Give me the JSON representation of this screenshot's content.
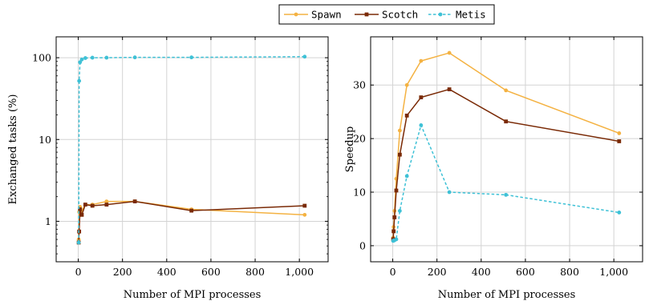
{
  "legend": {
    "entries": [
      {
        "name": "Spawn",
        "color": "#f4b242",
        "marker": "circle",
        "dash": "solid"
      },
      {
        "name": "Scotch",
        "color": "#7a2a06",
        "marker": "square",
        "dash": "solid"
      },
      {
        "name": "Metis",
        "color": "#3ec1d6",
        "marker": "circle",
        "dash": "dashed"
      }
    ],
    "placement": "top-center"
  },
  "chart_data": [
    {
      "type": "line",
      "xlabel": "Number of MPI processes",
      "ylabel": "Exchanged tasks (%)",
      "yscale": "log",
      "xlim": [
        -100,
        1130
      ],
      "ylim": [
        0.32,
        180
      ],
      "xticks": [
        0,
        200,
        400,
        600,
        800,
        1000
      ],
      "xtick_labels": [
        "0",
        "200",
        "400",
        "600",
        "800",
        "1,000"
      ],
      "yticks": [
        1,
        10,
        100
      ],
      "ytick_labels": [
        "1",
        "10",
        "100"
      ],
      "grid": true,
      "series": [
        {
          "name": "Spawn",
          "color": "#f4b242",
          "x": [
            2,
            4,
            8,
            16,
            32,
            64,
            128,
            256,
            512,
            1024
          ],
          "y": [
            0.6,
            1.3,
            1.5,
            1.35,
            1.6,
            1.6,
            1.75,
            1.75,
            1.4,
            1.2
          ]
        },
        {
          "name": "Scotch",
          "color": "#7a2a06",
          "x": [
            2,
            4,
            8,
            16,
            32,
            64,
            128,
            256,
            512,
            1024
          ],
          "y": [
            0.55,
            0.75,
            1.4,
            1.2,
            1.6,
            1.55,
            1.6,
            1.75,
            1.35,
            1.55
          ]
        },
        {
          "name": "Metis",
          "color": "#3ec1d6",
          "x": [
            2,
            4,
            8,
            16,
            32,
            64,
            128,
            256,
            512,
            1024
          ],
          "y": [
            0.55,
            52,
            88,
            95,
            99,
            100,
            100,
            101,
            101,
            103
          ]
        }
      ]
    },
    {
      "type": "line",
      "xlabel": "Number of MPI processes",
      "ylabel": "Speedup",
      "yscale": "linear",
      "xlim": [
        -100,
        1130
      ],
      "ylim": [
        -3,
        39
      ],
      "xticks": [
        0,
        200,
        400,
        600,
        800,
        1000
      ],
      "xtick_labels": [
        "0",
        "200",
        "400",
        "600",
        "800",
        "1,000"
      ],
      "yticks": [
        0,
        10,
        20,
        30
      ],
      "ytick_labels": [
        "0",
        "10",
        "20",
        "30"
      ],
      "grid": true,
      "series": [
        {
          "name": "Spawn",
          "color": "#f4b242",
          "x": [
            2,
            4,
            8,
            16,
            32,
            64,
            128,
            256,
            512,
            1024
          ],
          "y": [
            1.5,
            3.5,
            6.5,
            12.5,
            21.5,
            30.0,
            34.5,
            36.0,
            29.0,
            21.0
          ]
        },
        {
          "name": "Scotch",
          "color": "#7a2a06",
          "x": [
            2,
            4,
            8,
            16,
            32,
            64,
            128,
            256,
            512,
            1024
          ],
          "y": [
            1.2,
            2.7,
            5.3,
            10.3,
            17.0,
            24.3,
            27.7,
            29.2,
            23.2,
            19.5
          ]
        },
        {
          "name": "Metis",
          "color": "#3ec1d6",
          "x": [
            2,
            4,
            8,
            16,
            32,
            64,
            128,
            256,
            512,
            1024
          ],
          "y": [
            0.9,
            1.0,
            1.0,
            1.2,
            6.5,
            13.0,
            22.5,
            10.0,
            9.5,
            6.2
          ]
        }
      ]
    }
  ]
}
